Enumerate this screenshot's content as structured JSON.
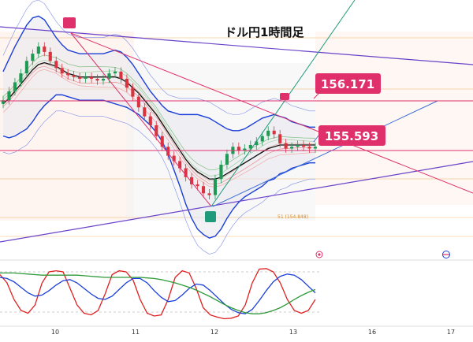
{
  "title": "ドル円1時間足",
  "chart_data": {
    "type": "candlestick",
    "title": "ドル円1時間足",
    "x_ticks": [
      "10",
      "11",
      "12",
      "13",
      "16",
      "17"
    ],
    "price_labels": [
      {
        "value": "156.171",
        "color": "#e0306b"
      },
      {
        "value": "155.593",
        "color": "#e0306b"
      }
    ],
    "fib_label": "51 (154.848)",
    "ohlc_close": [
      157.2,
      157.45,
      157.7,
      157.95,
      158.3,
      158.5,
      158.7,
      158.55,
      158.3,
      158.1,
      157.95,
      157.9,
      157.85,
      157.8,
      157.85,
      157.8,
      157.75,
      157.8,
      157.95,
      158.0,
      157.8,
      157.55,
      157.3,
      157.0,
      156.75,
      156.5,
      156.2,
      155.9,
      155.65,
      155.5,
      155.3,
      155.05,
      154.85,
      154.8,
      154.6,
      154.55,
      155.0,
      155.4,
      155.7,
      155.9,
      155.8,
      155.85,
      155.95,
      156.05,
      156.2,
      156.35,
      156.25,
      156.0,
      155.85,
      155.9,
      155.95,
      155.9,
      155.85,
      155.9
    ],
    "bollinger_upper": [
      158.0,
      158.35,
      158.7,
      159.0,
      159.3,
      159.5,
      159.55,
      159.45,
      159.2,
      158.95,
      158.75,
      158.6,
      158.55,
      158.5,
      158.5,
      158.5,
      158.5,
      158.5,
      158.55,
      158.6,
      158.55,
      158.4,
      158.2,
      157.95,
      157.7,
      157.45,
      157.25,
      157.05,
      156.9,
      156.85,
      156.8,
      156.8,
      156.8,
      156.8,
      156.75,
      156.7,
      156.6,
      156.5,
      156.4,
      156.35,
      156.35,
      156.4,
      156.5,
      156.6,
      156.7,
      156.75,
      156.8,
      156.75,
      156.7,
      156.6,
      156.55,
      156.5,
      156.45,
      156.45
    ],
    "bollinger_middle": [
      157.1,
      157.25,
      157.45,
      157.65,
      157.85,
      158.05,
      158.2,
      158.25,
      158.2,
      158.15,
      158.05,
      157.95,
      157.9,
      157.85,
      157.85,
      157.85,
      157.85,
      157.85,
      157.85,
      157.85,
      157.8,
      157.7,
      157.55,
      157.4,
      157.2,
      157.0,
      156.8,
      156.55,
      156.3,
      156.05,
      155.8,
      155.55,
      155.35,
      155.2,
      155.1,
      155.0,
      155.0,
      155.05,
      155.15,
      155.25,
      155.35,
      155.45,
      155.55,
      155.65,
      155.75,
      155.85,
      155.9,
      155.95,
      155.95,
      155.95,
      155.95,
      155.95,
      155.95,
      155.95
    ],
    "bollinger_lower": [
      156.2,
      156.15,
      156.2,
      156.3,
      156.4,
      156.6,
      156.85,
      157.05,
      157.2,
      157.35,
      157.35,
      157.3,
      157.25,
      157.2,
      157.2,
      157.2,
      157.2,
      157.2,
      157.15,
      157.1,
      157.05,
      157.0,
      156.9,
      156.8,
      156.65,
      156.5,
      156.3,
      156.05,
      155.7,
      155.25,
      154.8,
      154.3,
      153.9,
      153.6,
      153.45,
      153.35,
      153.4,
      153.6,
      153.9,
      154.15,
      154.35,
      154.5,
      154.6,
      154.7,
      154.8,
      154.95,
      155.0,
      155.15,
      155.2,
      155.3,
      155.35,
      155.4,
      155.45,
      155.45
    ],
    "horizontal_levels": [
      156.171,
      155.593
    ],
    "y_range": [
      153.0,
      160.0
    ],
    "oscillator": {
      "ylim": [
        0,
        100
      ],
      "series": [
        {
          "color": "#e02020",
          "values": [
            85,
            70,
            40,
            20,
            15,
            30,
            70,
            90,
            92,
            90,
            60,
            30,
            15,
            12,
            20,
            50,
            85,
            92,
            90,
            75,
            40,
            15,
            10,
            12,
            40,
            80,
            92,
            88,
            60,
            25,
            12,
            8,
            5,
            6,
            10,
            30,
            70,
            95,
            96,
            90,
            70,
            40,
            20,
            15,
            20,
            40
          ]
        },
        {
          "color": "#1a3fd8",
          "values": [
            80,
            78,
            72,
            62,
            52,
            46,
            48,
            56,
            66,
            74,
            76,
            70,
            60,
            50,
            42,
            40,
            46,
            58,
            70,
            78,
            78,
            70,
            56,
            44,
            36,
            38,
            48,
            60,
            68,
            66,
            56,
            44,
            32,
            22,
            16,
            14,
            22,
            38,
            56,
            72,
            82,
            86,
            84,
            76,
            64,
            52
          ]
        },
        {
          "color": "#2e9a3a",
          "values": [
            88,
            88,
            88,
            87,
            86,
            85,
            84,
            84,
            84,
            84,
            84,
            84,
            83,
            82,
            81,
            80,
            80,
            80,
            80,
            80,
            80,
            79,
            78,
            76,
            73,
            70,
            66,
            62,
            57,
            51,
            45,
            38,
            31,
            25,
            20,
            16,
            14,
            14,
            16,
            20,
            25,
            32,
            40,
            47,
            53,
            58
          ]
        }
      ]
    }
  }
}
